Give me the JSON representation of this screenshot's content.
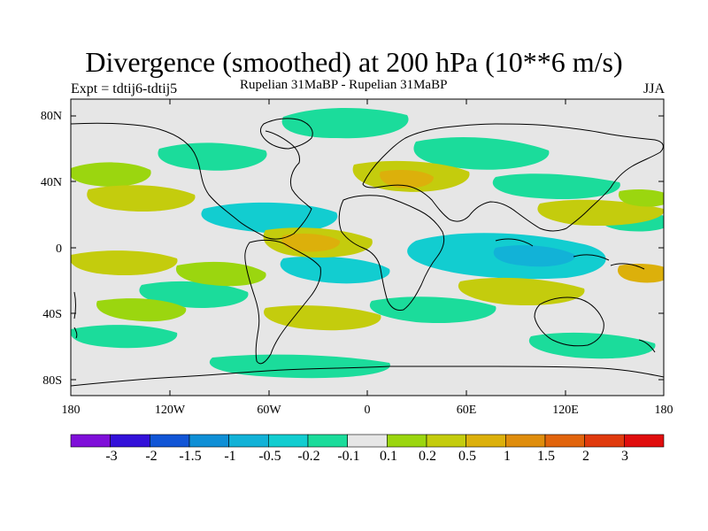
{
  "header": {
    "title": "Divergence (smoothed) at 200 hPa (10**6 m/s)",
    "expt": "Expt = tdtij6-tdtij5",
    "subtitle": "Rupelian  31MaBP - Rupelian  31MaBP",
    "season": "JJA"
  },
  "axes": {
    "y_ticks": [
      "80N",
      "40N",
      "0",
      "40S",
      "80S"
    ],
    "y_values": [
      80,
      40,
      0,
      -40,
      -80
    ],
    "x_ticks": [
      "180",
      "120W",
      "60W",
      "0",
      "60E",
      "120E",
      "180"
    ],
    "x_values": [
      -180,
      -120,
      -60,
      0,
      60,
      120,
      180
    ],
    "lon_range": [
      -180,
      180
    ],
    "lat_range": [
      -90,
      90
    ]
  },
  "colorbar": {
    "labels": [
      "-3",
      "-2",
      "-1.5",
      "-1",
      "-0.5",
      "-0.2",
      "-0.1",
      "0.1",
      "0.2",
      "0.5",
      "1",
      "1.5",
      "2",
      "3"
    ],
    "colors": [
      "#7f0fd9",
      "#3311d9",
      "#1155d6",
      "#0f8fd6",
      "#12b2d7",
      "#12cdd0",
      "#1bdc9b",
      "#e6e6e6",
      "#9bd60f",
      "#c4cc0d",
      "#dcb00b",
      "#df8d0c",
      "#e1640c",
      "#e03a0d",
      "#e00d0d"
    ]
  },
  "colors": {
    "background": "#ffffff",
    "map_fill": "#e6e6e6",
    "coast": "#000000"
  }
}
